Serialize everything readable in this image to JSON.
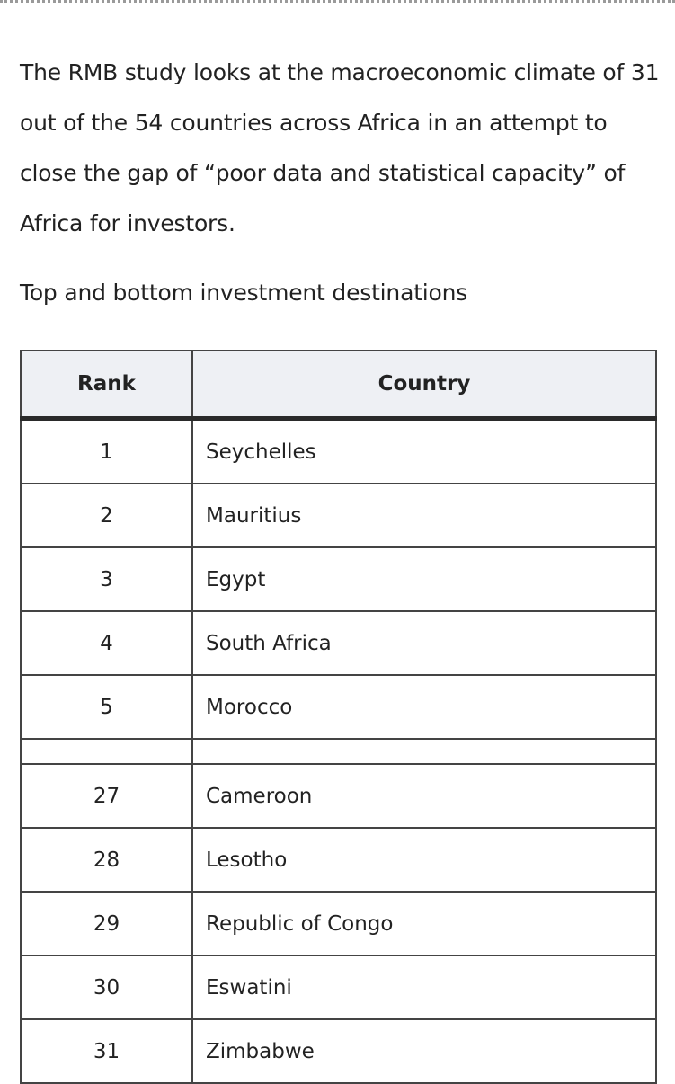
{
  "intro": {
    "text": "The RMB study looks at the macroeconomic climate of 31 out of the 54 countries across Africa in an attempt to close the gap of “poor data and statistical capacity” of Africa for investors."
  },
  "caption": {
    "text": "Top and bottom investment destinations"
  },
  "table": {
    "headers": {
      "rank": "Rank",
      "country": "Country"
    },
    "top_rows": [
      {
        "rank": "1",
        "country": "Seychelles"
      },
      {
        "rank": "2",
        "country": "Mauritius"
      },
      {
        "rank": "3",
        "country": "Egypt"
      },
      {
        "rank": "4",
        "country": "South Africa"
      },
      {
        "rank": "5",
        "country": "Morocco"
      }
    ],
    "bottom_rows": [
      {
        "rank": "27",
        "country": "Cameroon"
      },
      {
        "rank": "28",
        "country": "Lesotho"
      },
      {
        "rank": "29",
        "country": "Republic of Congo"
      },
      {
        "rank": "30",
        "country": "Eswatini"
      },
      {
        "rank": "31",
        "country": "Zimbabwe"
      }
    ]
  }
}
